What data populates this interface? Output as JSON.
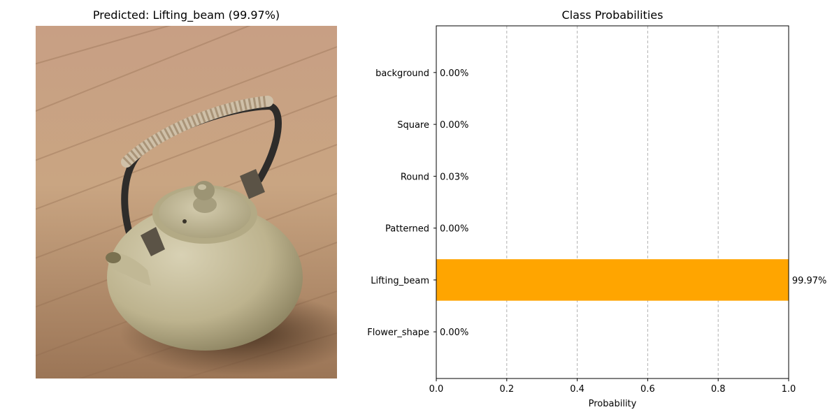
{
  "figure": {
    "left_title": "Predicted: Lifting_beam (99.97%)",
    "right_title": "Class Probabilities"
  },
  "photo": {
    "subject": "teapot-photo"
  },
  "chart_data": {
    "type": "bar",
    "orientation": "horizontal",
    "title": "Class Probabilities",
    "xlabel": "Probability",
    "ylabel": "",
    "xlim": [
      0.0,
      1.0
    ],
    "xticks": [
      "0.0",
      "0.2",
      "0.4",
      "0.6",
      "0.8",
      "1.0"
    ],
    "categories": [
      "background",
      "Square",
      "Round",
      "Patterned",
      "Lifting_beam",
      "Flower_shape"
    ],
    "values": [
      0.0,
      0.0,
      0.0003,
      0.0,
      0.9997,
      0.0
    ],
    "value_labels": [
      "0.00%",
      "0.00%",
      "0.03%",
      "0.00%",
      "99.97%",
      "0.00%"
    ],
    "grid": "x-dashed",
    "colors": {
      "bar": "#ffa500",
      "grid": "#b0b0b0"
    }
  }
}
